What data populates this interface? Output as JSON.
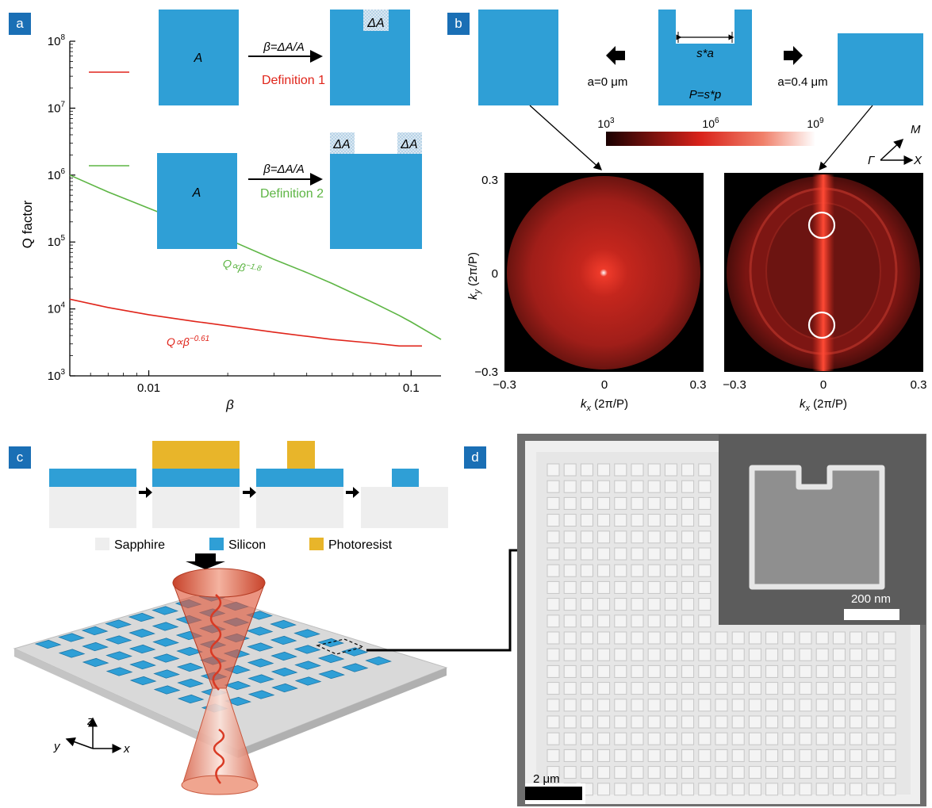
{
  "panels": {
    "a": "a",
    "b": "b",
    "c": "c",
    "d": "d"
  },
  "panel_a": {
    "shape_label_A": "A",
    "delta_label": "ΔA",
    "arrow_label": "β=ΔA/A",
    "definition1": "Definition 1",
    "definition2": "Definition 2",
    "fit_green": "Q∝β",
    "fit_green_exp": "−1.8",
    "fit_red": "Q∝β",
    "fit_red_exp": "−0.61",
    "colors": {
      "def1": "#e0251b",
      "def2": "#5db544",
      "silicon": "#2f9fd6"
    }
  },
  "panel_b": {
    "dim_label": "s*a",
    "period_label": "P=s*p",
    "left_label": "a=0 μm",
    "right_label": "a=0.4 μm",
    "colorbar_ticks": [
      "10",
      "10",
      "10"
    ],
    "colorbar_exps": [
      "3",
      "6",
      "9"
    ],
    "dir_M": "M",
    "dir_Gamma": "Γ",
    "dir_X": "X",
    "ylabel": "k",
    "ylabel_sub": "y",
    "ylabel_unit": " (2π/P)",
    "xlabel": "k",
    "xlabel_sub": "x",
    "xlabel_unit": " (2π/P)",
    "yticks": [
      "0.3",
      "0",
      "−0.3"
    ],
    "xticks": [
      "−0.3",
      "0",
      "0.3"
    ]
  },
  "panel_c": {
    "legend": [
      "Sapphire",
      "Silicon",
      "Photoresist"
    ],
    "axis_x": "x",
    "axis_y": "y",
    "axis_z": "z",
    "colors": {
      "sapphire": "#eeeeee",
      "silicon": "#2f9fd6",
      "photoresist": "#e8b52a"
    }
  },
  "panel_d": {
    "scale_main": "2 μm",
    "scale_inset": "200 nm"
  },
  "chart_data": {
    "type": "line",
    "xlabel": "β",
    "ylabel": "Q factor",
    "xscale": "log",
    "yscale": "log",
    "xlim": [
      0.005,
      0.13
    ],
    "ylim": [
      1000,
      100000000
    ],
    "xticks": [
      "0.01",
      "0.1"
    ],
    "yticks_base": "10",
    "yticks_exp": [
      "3",
      "4",
      "5",
      "6",
      "7",
      "8"
    ],
    "legend": [
      "Definition 1",
      "Definition 2"
    ],
    "series": [
      {
        "name": "Definition 1",
        "color": "#e0251b",
        "x": [
          0.005,
          0.007,
          0.01,
          0.015,
          0.02,
          0.03,
          0.04,
          0.05,
          0.07,
          0.09,
          0.1,
          0.11
        ],
        "y": [
          14000,
          10500,
          8200,
          6500,
          5600,
          4500,
          3900,
          3500,
          3100,
          2800,
          2800,
          2800
        ]
      },
      {
        "name": "Definition 2",
        "color": "#5db544",
        "x": [
          0.005,
          0.007,
          0.01,
          0.015,
          0.02,
          0.03,
          0.04,
          0.05,
          0.07,
          0.09,
          0.1,
          0.13
        ],
        "y": [
          1000000,
          560000,
          320000,
          170000,
          110000,
          55000,
          35000,
          24000,
          13000,
          8000,
          6400,
          3500
        ]
      }
    ]
  }
}
